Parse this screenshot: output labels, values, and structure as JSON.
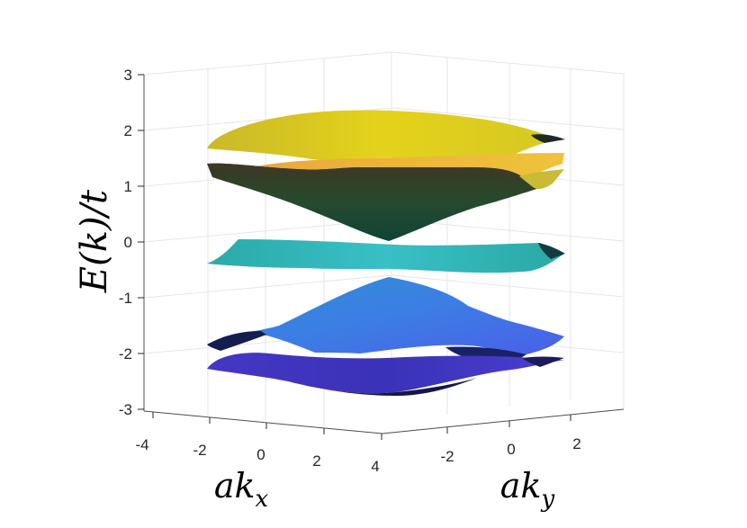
{
  "chart_data": {
    "type": "surface",
    "title": "",
    "xlabel": "ak_x",
    "ylabel": "ak_y",
    "zlabel": "E(k)/t",
    "xlim": [
      -4,
      4
    ],
    "ylim": [
      -3.5,
      3.5
    ],
    "zlim": [
      -3,
      3
    ],
    "xticks": [
      "-4",
      "-2",
      "0",
      "2",
      "4"
    ],
    "yticks": [
      "-2",
      "0",
      "2"
    ],
    "zticks": [
      "3",
      "2",
      "1",
      "0",
      "-1",
      "-2",
      "-3"
    ],
    "grid": true,
    "colormap": "parula",
    "bands": [
      {
        "name": "",
        "center_energy": 2.0,
        "min": 1.5,
        "max": 2.2
      },
      {
        "name": "",
        "center_energy": 1.6,
        "min": 0.05,
        "max": 1.6
      },
      {
        "name": "",
        "center_energy": 0.0,
        "min": -0.45,
        "max": 0.1
      },
      {
        "name": "",
        "center_energy": -1.2,
        "min": -2.0,
        "max": -0.7
      },
      {
        "name": "",
        "center_energy": -2.3,
        "min": -2.6,
        "max": -1.9
      }
    ]
  }
}
